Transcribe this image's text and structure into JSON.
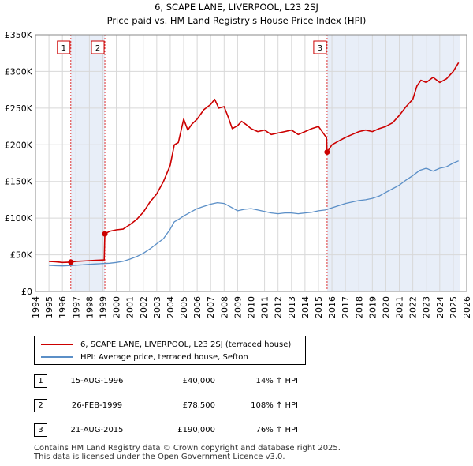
{
  "chart_data": {
    "type": "line",
    "title": "6, SCAPE LANE, LIVERPOOL, L23 2SJ",
    "subtitle": "Price paid vs. HM Land Registry's House Price Index (HPI)",
    "xlim": [
      1994,
      2026
    ],
    "ylim": [
      0,
      350000
    ],
    "x_ticks": [
      "1994",
      "1995",
      "1996",
      "1997",
      "1998",
      "1999",
      "2000",
      "2001",
      "2002",
      "2003",
      "2004",
      "2005",
      "2006",
      "2007",
      "2008",
      "2009",
      "2010",
      "2011",
      "2012",
      "2013",
      "2014",
      "2015",
      "2016",
      "2017",
      "2018",
      "2019",
      "2020",
      "2021",
      "2022",
      "2023",
      "2024",
      "2025",
      "2026"
    ],
    "y_ticks": [
      {
        "value": 0,
        "label": "£0"
      },
      {
        "value": 50000,
        "label": "£50K"
      },
      {
        "value": 100000,
        "label": "£100K"
      },
      {
        "value": 150000,
        "label": "£150K"
      },
      {
        "value": 200000,
        "label": "£200K"
      },
      {
        "value": 250000,
        "label": "£250K"
      },
      {
        "value": 300000,
        "label": "£300K"
      },
      {
        "value": 350000,
        "label": "£350K"
      }
    ],
    "shaded_ranges": [
      [
        1996.62,
        1999.15
      ],
      [
        2015.64,
        2025.5
      ]
    ],
    "series": [
      {
        "name": "6, SCAPE LANE, LIVERPOOL, L23 2SJ (terraced house)",
        "color": "#cc0000",
        "x": [
          1995.0,
          1995.5,
          1996.0,
          1996.62,
          1997.0,
          1997.5,
          1998.0,
          1998.5,
          1999.1,
          1999.15,
          1999.5,
          2000.0,
          2000.5,
          2001.0,
          2001.5,
          2002.0,
          2002.5,
          2003.0,
          2003.5,
          2004.0,
          2004.3,
          2004.6,
          2005.0,
          2005.3,
          2005.6,
          2006.0,
          2006.5,
          2007.0,
          2007.3,
          2007.6,
          2008.0,
          2008.3,
          2008.6,
          2009.0,
          2009.3,
          2009.6,
          2010.0,
          2010.5,
          2011.0,
          2011.5,
          2012.0,
          2012.5,
          2013.0,
          2013.5,
          2014.0,
          2014.5,
          2015.0,
          2015.5,
          2015.6,
          2015.64,
          2016.0,
          2016.5,
          2017.0,
          2017.5,
          2018.0,
          2018.5,
          2019.0,
          2019.5,
          2020.0,
          2020.5,
          2021.0,
          2021.5,
          2022.0,
          2022.3,
          2022.6,
          2023.0,
          2023.5,
          2024.0,
          2024.5,
          2025.0,
          2025.4
        ],
        "y": [
          41000,
          40500,
          39500,
          40000,
          41000,
          41500,
          42000,
          42500,
          43000,
          78500,
          82000,
          84000,
          85000,
          91000,
          98000,
          108000,
          122000,
          133000,
          150000,
          172000,
          200000,
          203000,
          235000,
          220000,
          228000,
          235000,
          248000,
          255000,
          262000,
          250000,
          252000,
          238000,
          222000,
          226000,
          232000,
          228000,
          222000,
          218000,
          220000,
          214000,
          216000,
          218000,
          220000,
          214000,
          218000,
          222000,
          225000,
          212000,
          210000,
          190000,
          200000,
          205000,
          210000,
          214000,
          218000,
          220000,
          218000,
          222000,
          225000,
          230000,
          240000,
          252000,
          262000,
          280000,
          288000,
          285000,
          292000,
          285000,
          290000,
          300000,
          312000
        ]
      },
      {
        "name": "HPI: Average price, terraced house, Sefton",
        "color": "#5b8fc7",
        "x": [
          1995.0,
          1995.5,
          1996.0,
          1996.5,
          1997.0,
          1997.5,
          1998.0,
          1998.5,
          1999.0,
          1999.5,
          2000.0,
          2000.5,
          2001.0,
          2001.5,
          2002.0,
          2002.5,
          2003.0,
          2003.5,
          2004.0,
          2004.3,
          2004.6,
          2005.0,
          2005.5,
          2006.0,
          2006.5,
          2007.0,
          2007.5,
          2008.0,
          2008.5,
          2009.0,
          2009.5,
          2010.0,
          2010.5,
          2011.0,
          2011.5,
          2012.0,
          2012.5,
          2013.0,
          2013.5,
          2014.0,
          2014.5,
          2015.0,
          2015.5,
          2016.0,
          2016.5,
          2017.0,
          2017.5,
          2018.0,
          2018.5,
          2019.0,
          2019.5,
          2020.0,
          2020.5,
          2021.0,
          2021.5,
          2022.0,
          2022.5,
          2023.0,
          2023.5,
          2024.0,
          2024.5,
          2025.0,
          2025.4
        ],
        "y": [
          35500,
          35000,
          34800,
          35200,
          35800,
          36300,
          37000,
          37500,
          38000,
          38500,
          39500,
          41000,
          44000,
          47500,
          52000,
          58000,
          65000,
          72000,
          85000,
          95000,
          98000,
          103000,
          108000,
          113000,
          116000,
          119000,
          121000,
          120000,
          115000,
          110000,
          112000,
          113000,
          111000,
          109000,
          107000,
          106000,
          107000,
          107000,
          106000,
          107000,
          108000,
          110000,
          111000,
          114000,
          117000,
          120000,
          122000,
          124000,
          125000,
          127000,
          130000,
          135000,
          140000,
          145000,
          152000,
          158000,
          165000,
          168000,
          164000,
          168000,
          170000,
          175000,
          178000
        ]
      }
    ],
    "markers": [
      {
        "label": "1",
        "x": 1996.62,
        "y": 40000
      },
      {
        "label": "2",
        "x": 1999.15,
        "y": 78500
      },
      {
        "label": "3",
        "x": 2015.64,
        "y": 190000
      }
    ]
  },
  "legend": {
    "property_label": "6, SCAPE LANE, LIVERPOOL, L23 2SJ (terraced house)",
    "hpi_label": "HPI: Average price, terraced house, Sefton"
  },
  "transactions": [
    {
      "num": "1",
      "date": "15-AUG-1996",
      "price": "£40,000",
      "hpi": "14% ↑ HPI"
    },
    {
      "num": "2",
      "date": "26-FEB-1999",
      "price": "£78,500",
      "hpi": "108% ↑ HPI"
    },
    {
      "num": "3",
      "date": "21-AUG-2015",
      "price": "£190,000",
      "hpi": "76% ↑ HPI"
    }
  ],
  "footer": {
    "line1": "Contains HM Land Registry data © Crown copyright and database right 2025.",
    "line2": "This data is licensed under the Open Government Licence v3.0."
  },
  "colors": {
    "property": "#cc0000",
    "hpi": "#5b8fc7",
    "shade": "#e8eef8",
    "grid": "#d8d8d8"
  }
}
